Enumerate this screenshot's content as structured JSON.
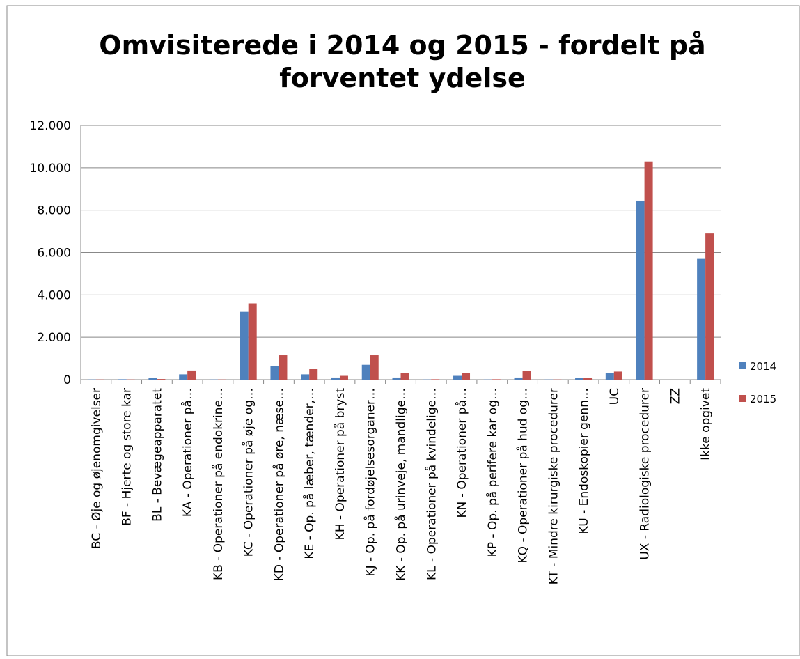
{
  "chart_data": {
    "type": "bar",
    "title": [
      "Omvisiterede i 2014 og 2015 - fordelt på",
      "forventet ydelse"
    ],
    "categories": [
      "BC - Øje og øjenomgivelser",
      "BF - Hjerte og store kar",
      "BL - Bevægeapparatet",
      "KA - Operationer på…",
      "KB - Operationer på endokrine…",
      "KC - Operationer på øje og…",
      "KD - Operationer på øre, næse…",
      "KE - Op. på læber, tænder,…",
      "KH - Operationer på bryst",
      "KJ - Op. på fordøjelsesorganer…",
      "KK - Op. på urinveje, mandlige…",
      "KL - Operationer på kvindelige…",
      "KN - Operationer på…",
      "KP - Op. på perifere kar og…",
      "KQ - Operationer på hud og…",
      "KT - Mindre kirurgiske procedurer",
      "KU - Endoskopier genn…",
      "UC",
      "UX - Radiologiske procedurer",
      "ZZ",
      "Ikke opgivet"
    ],
    "series": [
      {
        "name": "2014",
        "color": "#4f81bd",
        "values": [
          10,
          20,
          80,
          250,
          10,
          3200,
          650,
          250,
          100,
          700,
          100,
          10,
          180,
          10,
          100,
          10,
          80,
          300,
          8450,
          0,
          5700
        ]
      },
      {
        "name": "2015",
        "color": "#c0504d",
        "values": [
          10,
          10,
          30,
          430,
          10,
          3600,
          1150,
          500,
          180,
          1150,
          300,
          20,
          300,
          20,
          420,
          10,
          80,
          380,
          10300,
          0,
          6900
        ]
      }
    ],
    "ylim": [
      0,
      12000
    ],
    "yticks": [
      0,
      {
        "value": 2000,
        "label": "2.000"
      },
      {
        "value": 4000,
        "label": "4.000"
      },
      {
        "value": 6000,
        "label": "6.000"
      },
      {
        "value": 8000,
        "label": "8.000"
      },
      {
        "value": 10000,
        "label": "10.000"
      },
      {
        "value": 12000,
        "label": "12.000"
      }
    ],
    "grid": true,
    "legend": "right"
  }
}
